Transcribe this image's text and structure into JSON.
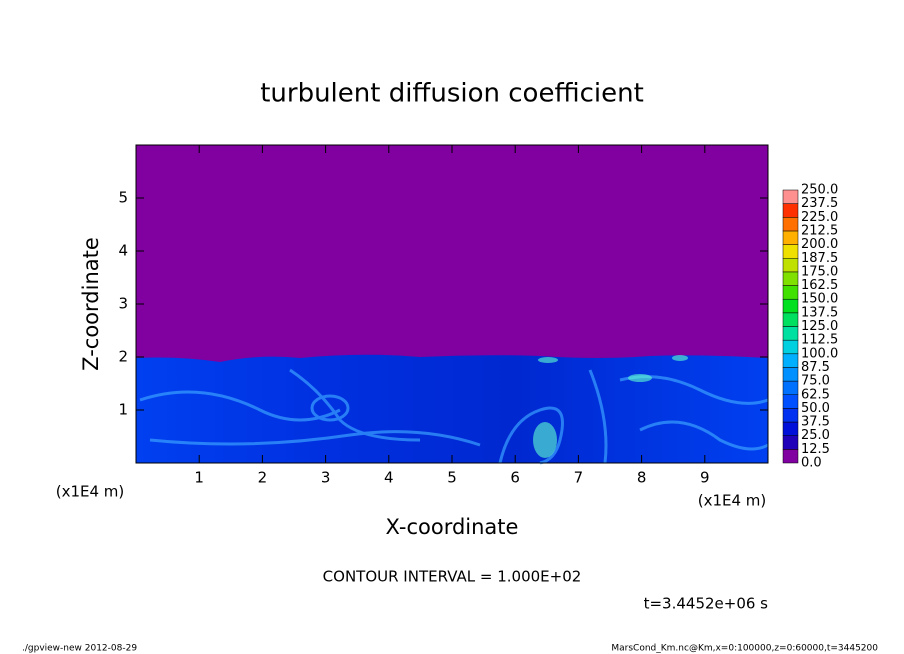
{
  "chart_data": {
    "type": "contour",
    "title": "turbulent diffusion coefficient",
    "xlabel": "X-coordinate",
    "ylabel": "Z-coordinate",
    "x_unit": "(x1E4 m)",
    "xlim": [
      0,
      10
    ],
    "xticks": [
      1,
      2,
      3,
      4,
      5,
      6,
      7,
      8,
      9
    ],
    "ylim": [
      0,
      6
    ],
    "yticks": [
      1,
      2,
      3,
      4,
      5
    ],
    "colorbar": {
      "levels": [
        {
          "value": 0,
          "label": "0.0"
        },
        12.5,
        {
          "value": 25,
          "label": "25.0"
        },
        37.5,
        {
          "value": 50,
          "label": "50.0"
        },
        62.5,
        {
          "value": 75,
          "label": "75.0"
        },
        87.5,
        {
          "value": 100,
          "label": "100.0"
        },
        112.5,
        {
          "value": 125,
          "label": "125.0"
        },
        137.5,
        {
          "value": 150,
          "label": "150.0"
        },
        162.5,
        {
          "value": 175,
          "label": "175.0"
        },
        187.5,
        {
          "value": 200,
          "label": "200.0"
        },
        212.5,
        {
          "value": 225,
          "label": "225.0"
        },
        237.5,
        {
          "value": 250,
          "label": "250.0"
        }
      ],
      "colors": [
        "#8000a0",
        "#2000b8",
        "#0010d8",
        "#0030f0",
        "#0050ff",
        "#0070ff",
        "#0090ff",
        "#00b0ff",
        "#00d0e0",
        "#00e0a0",
        "#00e060",
        "#00e020",
        "#40e000",
        "#80e000",
        "#c0e000",
        "#f0e000",
        "#ffb000",
        "#ff7000",
        "#ff3000",
        "#ff9090"
      ]
    },
    "contour_interval": "CONTOUR INTERVAL = 1.000E+02",
    "time_label": "t=3.4452e+06 s",
    "footer_left": "./gpview-new  2012-08-29",
    "footer_right": "MarsCond_Km.nc@Km,x=0:100000,z=0:60000,t=3445200"
  }
}
